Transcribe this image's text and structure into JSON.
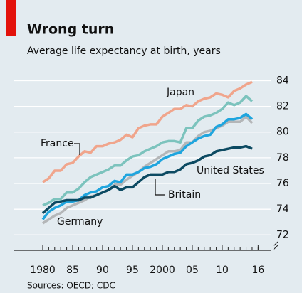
{
  "chart_data": {
    "type": "line",
    "title": "Wrong turn",
    "subtitle": "Average life expectancy at birth, years",
    "source": "Sources: OECD; CDC",
    "x": [
      1980,
      1981,
      1982,
      1983,
      1984,
      1985,
      1986,
      1987,
      1988,
      1989,
      1990,
      1991,
      1992,
      1993,
      1994,
      1995,
      1996,
      1997,
      1998,
      1999,
      2000,
      2001,
      2002,
      2003,
      2004,
      2005,
      2006,
      2007,
      2008,
      2009,
      2010,
      2011,
      2012,
      2013,
      2014,
      2015
    ],
    "series": [
      {
        "name": "Japan",
        "color": "#f0a58c",
        "values": [
          76.1,
          76.4,
          77.0,
          77.0,
          77.5,
          77.6,
          78.1,
          78.5,
          78.4,
          78.9,
          78.9,
          79.1,
          79.2,
          79.4,
          79.8,
          79.6,
          80.3,
          80.5,
          80.6,
          80.6,
          81.2,
          81.5,
          81.8,
          81.8,
          82.1,
          82.0,
          82.4,
          82.6,
          82.7,
          83.0,
          82.9,
          82.7,
          83.2,
          83.4,
          83.7,
          83.9
        ]
      },
      {
        "name": "France",
        "color": "#7cc3bd",
        "values": [
          74.3,
          74.5,
          74.8,
          74.8,
          75.3,
          75.3,
          75.6,
          76.1,
          76.5,
          76.7,
          76.9,
          77.1,
          77.4,
          77.4,
          77.8,
          78.1,
          78.2,
          78.5,
          78.7,
          78.9,
          79.2,
          79.3,
          79.3,
          79.2,
          80.3,
          80.3,
          80.9,
          81.2,
          81.3,
          81.5,
          81.8,
          82.3,
          82.1,
          82.3,
          82.8,
          82.4
        ]
      },
      {
        "name": "Germany",
        "color": "#b4b6b8",
        "values": [
          72.9,
          73.2,
          73.5,
          73.7,
          74.1,
          74.3,
          74.5,
          74.7,
          75.0,
          75.1,
          75.3,
          75.5,
          75.9,
          75.9,
          76.3,
          76.6,
          76.9,
          77.3,
          77.6,
          77.9,
          78.2,
          78.5,
          78.5,
          78.6,
          79.2,
          79.2,
          79.7,
          80.0,
          80.1,
          80.3,
          80.5,
          80.8,
          80.8,
          80.8,
          81.2,
          80.7
        ]
      },
      {
        "name": "Britain",
        "color": "#1fa5de",
        "values": [
          73.2,
          73.8,
          74.1,
          74.3,
          74.6,
          74.6,
          74.7,
          75.1,
          75.3,
          75.4,
          75.7,
          75.8,
          76.2,
          76.1,
          76.7,
          76.7,
          76.9,
          77.2,
          77.3,
          77.5,
          77.9,
          78.1,
          78.3,
          78.4,
          78.9,
          79.2,
          79.5,
          79.7,
          79.8,
          80.4,
          80.6,
          81.0,
          81.0,
          81.1,
          81.4,
          81.0
        ]
      },
      {
        "name": "United States",
        "color": "#0c4a62",
        "values": [
          73.7,
          74.1,
          74.5,
          74.6,
          74.7,
          74.7,
          74.7,
          74.9,
          74.9,
          75.1,
          75.3,
          75.5,
          75.8,
          75.5,
          75.7,
          75.7,
          76.1,
          76.5,
          76.7,
          76.7,
          76.7,
          76.9,
          76.9,
          77.1,
          77.5,
          77.6,
          77.8,
          78.1,
          78.2,
          78.5,
          78.6,
          78.7,
          78.8,
          78.8,
          78.9,
          78.7
        ]
      }
    ],
    "xlim": [
      1975.24,
      2018.1
    ],
    "xticks": [
      {
        "value": 1980,
        "label": "1980"
      },
      {
        "value": 1985,
        "label": "85"
      },
      {
        "value": 1990,
        "label": "90"
      },
      {
        "value": 1995,
        "label": "95"
      },
      {
        "value": 2000,
        "label": "2000"
      },
      {
        "value": 2005,
        "label": "05"
      },
      {
        "value": 2010,
        "label": "10"
      },
      {
        "value": 2016,
        "label": "16"
      }
    ],
    "ylim": [
      70.8,
      84.8
    ],
    "yticks": [
      72,
      74,
      76,
      78,
      80,
      82,
      84
    ],
    "grid": true
  }
}
